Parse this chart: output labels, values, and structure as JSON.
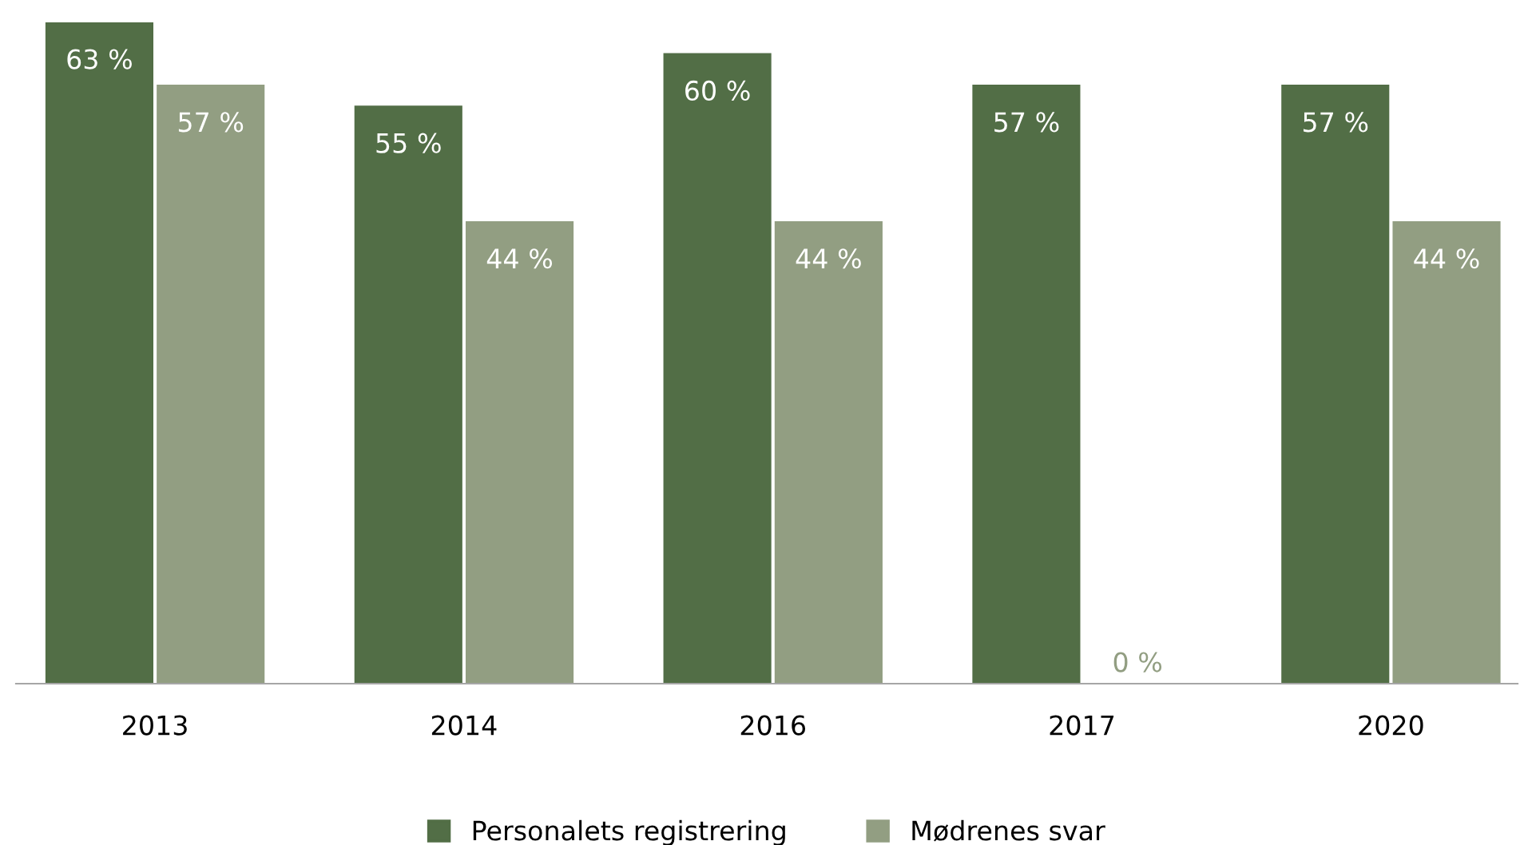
{
  "chart_data": {
    "type": "bar",
    "categories": [
      "2013",
      "2014",
      "2016",
      "2017",
      "2020"
    ],
    "series": [
      {
        "name": "Personalets registrering",
        "color": "#526e46",
        "values": [
          63,
          55,
          60,
          57,
          57
        ],
        "value_labels": [
          "63 %",
          "55 %",
          "60 %",
          "57 %",
          "57 %"
        ]
      },
      {
        "name": "Mødrenes svar",
        "color": "#929e82",
        "values": [
          57,
          44,
          44,
          0,
          44
        ],
        "value_labels": [
          "57 %",
          "44 %",
          "44 %",
          "0 %",
          "44 %"
        ]
      }
    ],
    "legend": "bottom",
    "grid": false
  }
}
